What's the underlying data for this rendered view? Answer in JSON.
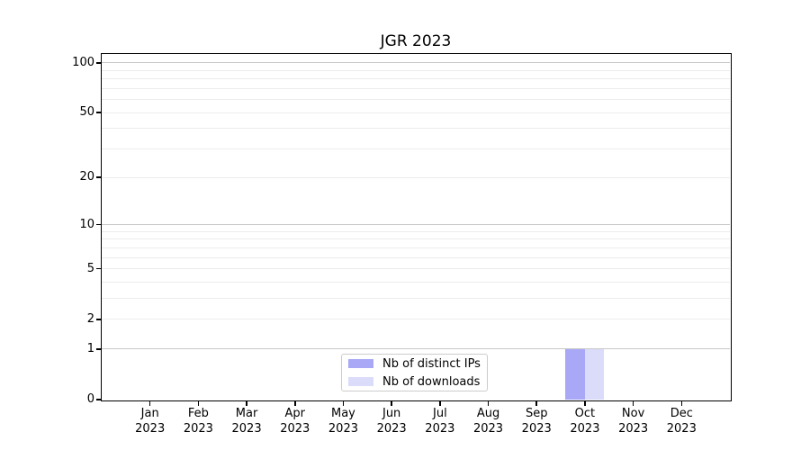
{
  "chart_data": {
    "type": "bar",
    "title": "JGR 2023",
    "categories": [
      "Jan",
      "Feb",
      "Mar",
      "Apr",
      "May",
      "Jun",
      "Jul",
      "Aug",
      "Sep",
      "Oct",
      "Nov",
      "Dec"
    ],
    "year_label": "2023",
    "series": [
      {
        "name": "Nb of distinct IPs",
        "color": "#a8a8f7",
        "values": [
          0,
          0,
          0,
          0,
          0,
          0,
          0,
          0,
          0,
          1,
          0,
          0
        ]
      },
      {
        "name": "Nb of downloads",
        "color": "#dbdbfa",
        "values": [
          0,
          0,
          0,
          0,
          0,
          0,
          0,
          0,
          0,
          1,
          0,
          0
        ]
      }
    ],
    "y_axis": {
      "scale": "log1p",
      "ticks": [
        0,
        1,
        2,
        5,
        10,
        20,
        50,
        100
      ],
      "major_grid": [
        1,
        10,
        100
      ],
      "minor_grid": [
        2,
        3,
        4,
        5,
        6,
        7,
        8,
        9,
        20,
        30,
        40,
        50,
        60,
        70,
        80,
        90
      ],
      "ylim": [
        0,
        113
      ]
    },
    "x_axis": {
      "slots": 13,
      "bar_width_fraction": 0.4
    },
    "legend": {
      "position": "lower-center",
      "entries": [
        "Nb of distinct IPs",
        "Nb of downloads"
      ]
    },
    "colors": {
      "background": "#ffffff",
      "axis": "#000000",
      "grid_major": "#c8c8c8",
      "grid_minor": "#ececec",
      "text": "#000000"
    }
  }
}
